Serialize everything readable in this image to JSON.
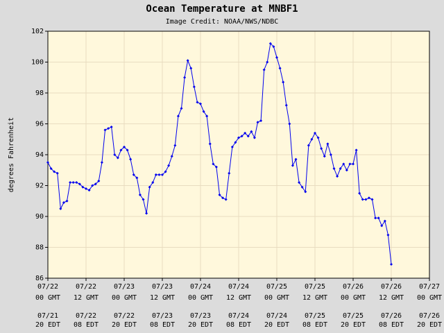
{
  "chart_data": {
    "type": "line",
    "title": "Ocean Temperature at MNBF1",
    "subtitle": "Image Credit: NOAA/NWS/NDBC",
    "y_label": "degrees Fahrenheit",
    "color": "#0000ee",
    "grid": true,
    "ylim": [
      86,
      102
    ],
    "yticks": [
      86,
      88,
      90,
      92,
      94,
      96,
      98,
      100,
      102
    ],
    "xlim": [
      "07/22 00:00",
      "07/27 00:00"
    ],
    "xticks": [
      {
        "value": "07/22 00:00",
        "label": [
          "07/22",
          "00 GMT"
        ],
        "label_local": [
          "07/21",
          "20 EDT"
        ]
      },
      {
        "value": "07/22 12:00",
        "label": [
          "07/22",
          "12 GMT"
        ],
        "label_local": [
          "07/22",
          "08 EDT"
        ]
      },
      {
        "value": "07/23 00:00",
        "label": [
          "07/23",
          "00 GMT"
        ],
        "label_local": [
          "07/22",
          "20 EDT"
        ]
      },
      {
        "value": "07/23 12:00",
        "label": [
          "07/23",
          "12 GMT"
        ],
        "label_local": [
          "07/23",
          "08 EDT"
        ]
      },
      {
        "value": "07/24 00:00",
        "label": [
          "07/24",
          "00 GMT"
        ],
        "label_local": [
          "07/23",
          "20 EDT"
        ]
      },
      {
        "value": "07/24 12:00",
        "label": [
          "07/24",
          "12 GMT"
        ],
        "label_local": [
          "07/24",
          "08 EDT"
        ]
      },
      {
        "value": "07/25 00:00",
        "label": [
          "07/25",
          "00 GMT"
        ],
        "label_local": [
          "07/24",
          "20 EDT"
        ]
      },
      {
        "value": "07/25 12:00",
        "label": [
          "07/25",
          "12 GMT"
        ],
        "label_local": [
          "07/25",
          "08 EDT"
        ]
      },
      {
        "value": "07/26 00:00",
        "label": [
          "07/26",
          "00 GMT"
        ],
        "label_local": [
          "07/25",
          "20 EDT"
        ]
      },
      {
        "value": "07/26 12:00",
        "label": [
          "07/26",
          "12 GMT"
        ],
        "label_local": [
          "07/26",
          "08 EDT"
        ]
      },
      {
        "value": "07/27 00:00",
        "label": [
          "07/27",
          "00 GMT"
        ],
        "label_local": [
          "07/26",
          "20 EDT"
        ]
      }
    ],
    "x": [
      "07/22 00:00",
      "07/22 01:00",
      "07/22 02:00",
      "07/22 03:00",
      "07/22 04:00",
      "07/22 05:00",
      "07/22 06:00",
      "07/22 07:00",
      "07/22 08:00",
      "07/22 09:00",
      "07/22 10:00",
      "07/22 11:00",
      "07/22 12:00",
      "07/22 13:00",
      "07/22 14:00",
      "07/22 15:00",
      "07/22 16:00",
      "07/22 17:00",
      "07/22 18:00",
      "07/22 19:00",
      "07/22 20:00",
      "07/22 21:00",
      "07/22 22:00",
      "07/22 23:00",
      "07/23 00:00",
      "07/23 01:00",
      "07/23 02:00",
      "07/23 03:00",
      "07/23 04:00",
      "07/23 05:00",
      "07/23 06:00",
      "07/23 07:00",
      "07/23 08:00",
      "07/23 09:00",
      "07/23 10:00",
      "07/23 11:00",
      "07/23 12:00",
      "07/23 13:00",
      "07/23 14:00",
      "07/23 15:00",
      "07/23 16:00",
      "07/23 17:00",
      "07/23 18:00",
      "07/23 19:00",
      "07/23 20:00",
      "07/23 21:00",
      "07/23 22:00",
      "07/23 23:00",
      "07/24 00:00",
      "07/24 01:00",
      "07/24 02:00",
      "07/24 03:00",
      "07/24 04:00",
      "07/24 05:00",
      "07/24 06:00",
      "07/24 07:00",
      "07/24 08:00",
      "07/24 09:00",
      "07/24 10:00",
      "07/24 11:00",
      "07/24 12:00",
      "07/24 13:00",
      "07/24 14:00",
      "07/24 15:00",
      "07/24 16:00",
      "07/24 17:00",
      "07/24 18:00",
      "07/24 19:00",
      "07/24 20:00",
      "07/24 21:00",
      "07/24 22:00",
      "07/24 23:00",
      "07/25 00:00",
      "07/25 01:00",
      "07/25 02:00",
      "07/25 03:00",
      "07/25 04:00",
      "07/25 05:00",
      "07/25 06:00",
      "07/25 07:00",
      "07/25 08:00",
      "07/25 09:00",
      "07/25 10:00",
      "07/25 11:00",
      "07/25 12:00",
      "07/25 13:00",
      "07/25 14:00",
      "07/25 15:00",
      "07/25 16:00",
      "07/25 17:00",
      "07/25 18:00",
      "07/25 19:00",
      "07/25 20:00",
      "07/25 21:00",
      "07/25 22:00",
      "07/25 23:00",
      "07/26 00:00",
      "07/26 01:00",
      "07/26 02:00",
      "07/26 03:00",
      "07/26 04:00",
      "07/26 05:00",
      "07/26 06:00",
      "07/26 07:00",
      "07/26 08:00",
      "07/26 09:00",
      "07/26 10:00",
      "07/26 11:00",
      "07/26 12:00"
    ],
    "values": [
      93.5,
      93.1,
      92.9,
      92.8,
      90.5,
      90.9,
      91.0,
      92.2,
      92.2,
      92.2,
      92.1,
      91.9,
      91.8,
      91.7,
      92.0,
      92.1,
      92.3,
      93.5,
      95.6,
      95.7,
      95.8,
      94.0,
      93.8,
      94.3,
      94.5,
      94.3,
      93.7,
      92.7,
      92.5,
      91.4,
      91.1,
      90.2,
      91.9,
      92.2,
      92.7,
      92.7,
      92.7,
      92.9,
      93.3,
      93.9,
      94.6,
      96.5,
      97.0,
      99.0,
      100.1,
      99.6,
      98.4,
      97.4,
      97.3,
      96.8,
      96.5,
      94.7,
      93.4,
      93.2,
      91.4,
      91.2,
      91.1,
      92.8,
      94.5,
      94.8,
      95.1,
      95.2,
      95.4,
      95.2,
      95.5,
      95.1,
      96.1,
      96.2,
      99.5,
      100.0,
      101.2,
      101.0,
      100.3,
      99.6,
      98.7,
      97.2,
      96.0,
      93.3,
      93.7,
      92.2,
      91.9,
      91.6,
      94.6,
      95.0,
      95.4,
      95.1,
      94.4,
      93.9,
      94.7,
      94.0,
      93.1,
      92.6,
      93.1,
      93.4,
      93.0,
      93.4,
      93.4,
      94.3,
      91.5,
      91.1,
      91.1,
      91.2,
      91.1,
      89.9,
      89.9,
      89.4,
      89.7,
      88.8,
      86.9
    ]
  }
}
